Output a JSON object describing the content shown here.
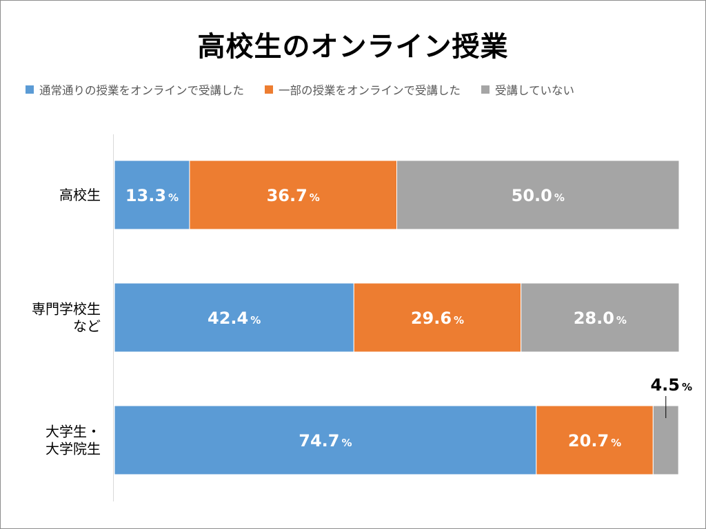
{
  "chart_data": {
    "type": "bar",
    "orientation": "horizontal",
    "stacked": true,
    "title": "高校生のオンライン授業",
    "xlim": [
      0,
      100
    ],
    "grid": false,
    "legend_position": "top",
    "value_unit": "%",
    "categories": [
      [
        "高校生"
      ],
      [
        "専門学校生",
        "など"
      ],
      [
        "大学生・",
        "大学院生"
      ]
    ],
    "series": [
      {
        "name": "通常通りの授業をオンラインで受講した",
        "color": "#5b9bd5",
        "values": [
          13.3,
          42.4,
          74.7
        ]
      },
      {
        "name": "一部の授業をオンラインで受講した",
        "color": "#ed7d31",
        "values": [
          36.7,
          29.6,
          20.7
        ]
      },
      {
        "name": "受講していない",
        "color": "#a5a5a5",
        "values": [
          50.0,
          28.0,
          4.5
        ]
      }
    ]
  }
}
